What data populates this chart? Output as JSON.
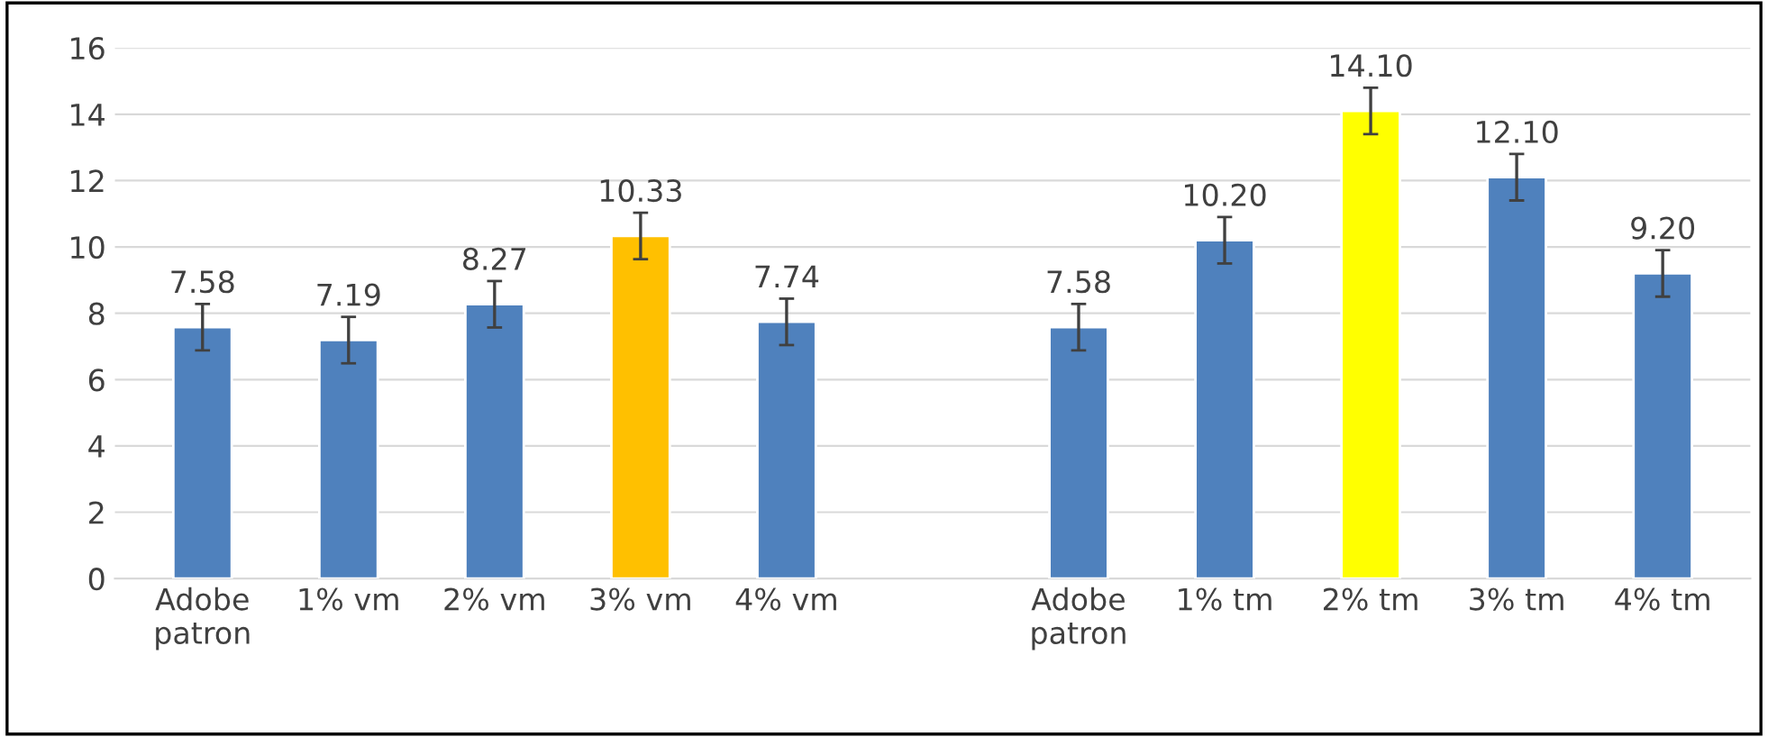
{
  "chart_data": {
    "type": "bar",
    "categories": [
      "Adobe\npatron",
      "1% vm",
      "2% vm",
      "3% vm",
      "4% vm",
      null,
      "Adobe\npatron",
      "1% tm",
      "2% tm",
      "3% tm",
      "4% tm"
    ],
    "values": [
      7.58,
      7.19,
      8.27,
      10.33,
      7.74,
      null,
      7.58,
      10.2,
      14.1,
      12.1,
      9.2
    ],
    "value_labels": [
      "7.58",
      "7.19",
      "8.27",
      "10.33",
      "7.74",
      null,
      "7.58",
      "10.20",
      "14.10",
      "12.10",
      "9.20"
    ],
    "errors": [
      0.7,
      0.7,
      0.7,
      0.7,
      0.7,
      null,
      0.7,
      0.7,
      0.7,
      0.7,
      0.7
    ],
    "colors": [
      "#4f81bd",
      "#4f81bd",
      "#4f81bd",
      "#ffc000",
      "#4f81bd",
      "#4f81bd",
      "#4f81bd",
      "#4f81bd",
      "#ffff00",
      "#4f81bd",
      "#4f81bd"
    ],
    "ylim": [
      0,
      16
    ],
    "yticks": [
      0,
      2,
      4,
      6,
      8,
      10,
      12,
      14,
      16
    ],
    "grid": "y",
    "legend": false
  }
}
